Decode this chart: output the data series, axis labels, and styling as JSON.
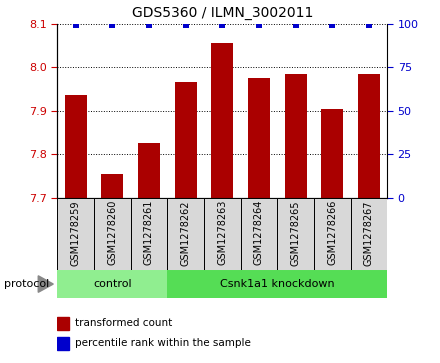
{
  "title": "GDS5360 / ILMN_3002011",
  "samples": [
    "GSM1278259",
    "GSM1278260",
    "GSM1278261",
    "GSM1278262",
    "GSM1278263",
    "GSM1278264",
    "GSM1278265",
    "GSM1278266",
    "GSM1278267"
  ],
  "bar_values": [
    7.935,
    7.755,
    7.825,
    7.965,
    8.055,
    7.975,
    7.985,
    7.905,
    7.985
  ],
  "percentile_values": [
    99,
    99,
    99,
    99,
    99,
    99,
    99,
    99,
    99
  ],
  "ylim": [
    7.7,
    8.1
  ],
  "yticks_left": [
    7.7,
    7.8,
    7.9,
    8.0,
    8.1
  ],
  "yticks_right": [
    0,
    25,
    50,
    75,
    100
  ],
  "bar_color": "#aa0000",
  "dot_color": "#0000cc",
  "n_control": 3,
  "n_knockdown": 6,
  "control_label": "control",
  "knockdown_label": "Csnk1a1 knockdown",
  "protocol_label": "protocol",
  "legend_bar_label": "transformed count",
  "legend_dot_label": "percentile rank within the sample",
  "control_color": "#90ee90",
  "knockdown_color": "#55dd55",
  "tick_color_left": "#cc0000",
  "tick_color_right": "#0000cc",
  "bg_color": "#d8d8d8",
  "bar_width": 0.6
}
